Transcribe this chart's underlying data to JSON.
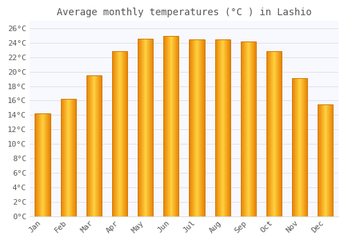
{
  "title": "Average monthly temperatures (°C ) in Lashio",
  "months": [
    "Jan",
    "Feb",
    "Mar",
    "Apr",
    "May",
    "Jun",
    "Jul",
    "Aug",
    "Sep",
    "Oct",
    "Nov",
    "Dec"
  ],
  "values": [
    14.2,
    16.2,
    19.5,
    22.8,
    24.6,
    24.9,
    24.5,
    24.5,
    24.2,
    22.8,
    19.1,
    15.5
  ],
  "bar_color_main": "#FFA500",
  "bar_color_edge": "#E08000",
  "bar_color_light": "#FFD080",
  "background_color": "#FFFFFF",
  "plot_bg_color": "#F8F8FF",
  "grid_color": "#DDDDDD",
  "text_color": "#555555",
  "ylim": [
    0,
    27
  ],
  "yticks": [
    0,
    2,
    4,
    6,
    8,
    10,
    12,
    14,
    16,
    18,
    20,
    22,
    24,
    26
  ],
  "title_fontsize": 10,
  "tick_fontsize": 8,
  "bar_width": 0.6
}
